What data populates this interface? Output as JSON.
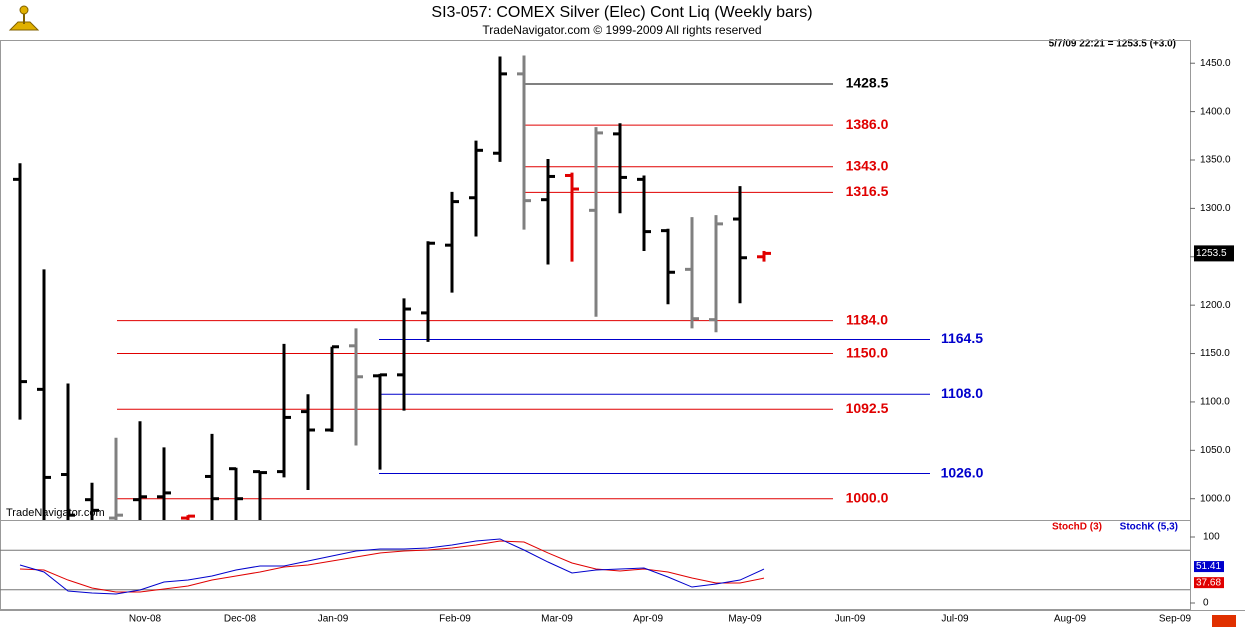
{
  "chart_data": {
    "type": "ohlc",
    "title": "SI3-057:  COMEX Silver (Elec) Cont Liq  (Weekly bars)",
    "subtitle": "TradeNavigator.com © 1999-2009 All rights reserved",
    "info": "5/7/09 22:21 = 1253.5 (+3.0)",
    "watermark": "TradeNavigator.com",
    "xticks": [
      "Nov-08",
      "Dec-08",
      "Jan-09",
      "Feb-09",
      "Mar-09",
      "Apr-09",
      "May-09",
      "Jun-09",
      "Jul-09",
      "Aug-09",
      "Sep-09"
    ],
    "ylim": [
      978,
      1474
    ],
    "yticks": [
      {
        "value": 1000,
        "label": "1000.0"
      },
      {
        "value": 1050,
        "label": "1050.0"
      },
      {
        "value": 1100,
        "label": "1100.0"
      },
      {
        "value": 1150,
        "label": "1150.0"
      },
      {
        "value": 1200,
        "label": "1200.0"
      },
      {
        "value": 1250,
        "label": "1250.0"
      },
      {
        "value": 1300,
        "label": "1300.0"
      },
      {
        "value": 1350,
        "label": "1350.0"
      },
      {
        "value": 1400,
        "label": "1400.0"
      },
      {
        "value": 1450,
        "label": "1450.0"
      }
    ],
    "last_price_label": "1253.5",
    "open": [
      1330,
      1113,
      1025,
      999,
      980,
      999,
      1002,
      980,
      1023,
      1031,
      1028,
      1028,
      1090,
      1071,
      1158,
      1127,
      1128,
      1192,
      1262,
      1311,
      1357,
      1439,
      1309,
      1334,
      1298,
      1377,
      1330,
      1277,
      1237,
      1185,
      1289,
      1250
    ],
    "high": [
      1346.6,
      1237,
      1119,
      1016.5,
      1063,
      1080,
      1053,
      983,
      1067,
      1032,
      1028,
      1160,
      1108,
      1157,
      1176,
      1129,
      1207,
      1266,
      1317,
      1370,
      1457,
      1458,
      1351,
      1337,
      1384,
      1388,
      1334,
      1279,
      1291,
      1293,
      1323,
      1256
    ],
    "low": [
      1081.7,
      975,
      975,
      975,
      975,
      975,
      975,
      975,
      975,
      975,
      975,
      1022,
      1009,
      1069,
      1055,
      1030,
      1091,
      1162,
      1213,
      1271,
      1348,
      1278,
      1242,
      1245,
      1188,
      1295,
      1256,
      1201,
      1176,
      1172,
      1202,
      1245
    ],
    "close": [
      1121,
      1022,
      983,
      988,
      983,
      1002,
      1006,
      982,
      1000,
      1000,
      1027,
      1084,
      1071,
      1157,
      1126,
      1128,
      1196,
      1264,
      1307,
      1360,
      1439,
      1308,
      1333,
      1320,
      1378,
      1332,
      1276,
      1234,
      1186,
      1284,
      1249,
      1253.5
    ],
    "colors": [
      "#000000",
      "#000000",
      "#000000",
      "#000000",
      "#808080",
      "#000000",
      "#000000",
      "#e00000",
      "#000000",
      "#000000",
      "#000000",
      "#000000",
      "#000000",
      "#000000",
      "#808080",
      "#000000",
      "#000000",
      "#000000",
      "#000000",
      "#000000",
      "#000000",
      "#808080",
      "#000000",
      "#e00000",
      "#808080",
      "#000000",
      "#000000",
      "#000000",
      "#808080",
      "#808080",
      "#000000",
      "#e00000"
    ],
    "levels": [
      {
        "value": 1428.5,
        "label": "1428.5",
        "color": "#000000"
      },
      {
        "value": 1386,
        "label": "1386.0",
        "color": "#e00000"
      },
      {
        "value": 1343,
        "label": "1343.0",
        "color": "#e00000"
      },
      {
        "value": 1316.5,
        "label": "1316.5",
        "color": "#e00000"
      },
      {
        "value": 1184,
        "label": "1184.0",
        "color": "#e00000"
      },
      {
        "value": 1150,
        "label": "1150.0",
        "color": "#e00000"
      },
      {
        "value": 1092.5,
        "label": "1092.5",
        "color": "#e00000"
      },
      {
        "value": 1000,
        "label": "1000.0",
        "color": "#e00000"
      },
      {
        "value": 1164.5,
        "label": "1164.5",
        "color": "#0000cc"
      },
      {
        "value": 1108,
        "label": "1108.0",
        "color": "#0000cc"
      },
      {
        "value": 1026,
        "label": "1026.0",
        "color": "#0000cc"
      }
    ],
    "stoch": {
      "ylim": [
        0,
        100
      ],
      "yticks": [
        100,
        0
      ],
      "bands": [
        80,
        20
      ],
      "series": [
        {
          "name": "StochD (3)",
          "color": "#e00000",
          "values": [
            51.5,
            50,
            34.8,
            22.7,
            16.7,
            16.7,
            21.2,
            25.8,
            34.8,
            40.9,
            47,
            54.5,
            57.6,
            63.6,
            69.7,
            75.8,
            78.8,
            80.3,
            83.3,
            87.9,
            93.9,
            92.4,
            75.8,
            60.6,
            51.5,
            48.5,
            51.5,
            47,
            37.9,
            30.3,
            30.3,
            37.68
          ]
        },
        {
          "name": "StochK (5,3)",
          "color": "#0000cc",
          "values": [
            57.6,
            47,
            18.2,
            15.2,
            13.6,
            19.7,
            31.8,
            34.8,
            40.9,
            50,
            56.1,
            56.1,
            63.6,
            71.2,
            78.8,
            81.8,
            81.8,
            83.3,
            87.9,
            93.9,
            97,
            80.3,
            62.1,
            45.5,
            50,
            51.5,
            53,
            39.4,
            24.2,
            28.8,
            34.8,
            51.41
          ]
        }
      ]
    }
  }
}
